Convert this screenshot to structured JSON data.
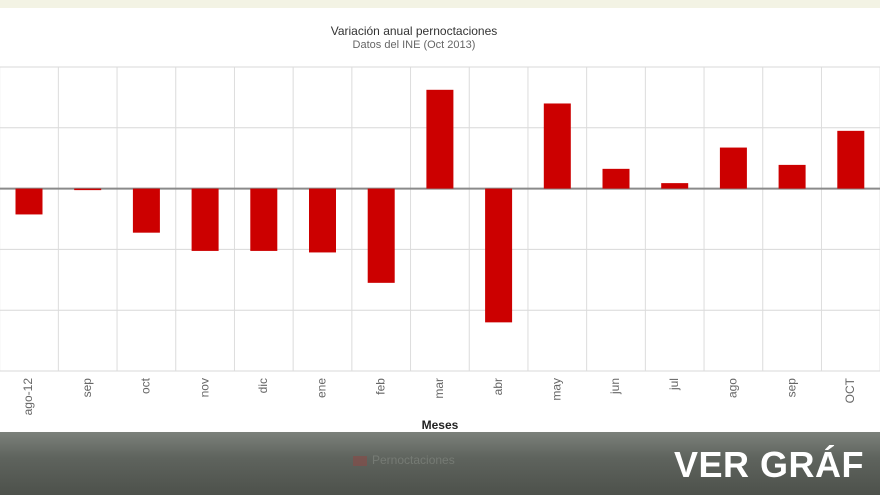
{
  "chart_data": {
    "type": "bar",
    "title": "Variación anual pernoctaciones",
    "subtitle": "Datos del INE (Oct 2013)",
    "xlabel": "Meses",
    "ylabel": "",
    "categories": [
      "ago-12",
      "sep",
      "oct",
      "nov",
      "dic",
      "ene",
      "feb",
      "mar",
      "abr",
      "may",
      "jun",
      "jul",
      "ago",
      "sep",
      "OCT"
    ],
    "values": [
      -0.85,
      -0.05,
      -1.45,
      -2.05,
      -2.05,
      -2.1,
      -3.1,
      3.25,
      -4.4,
      2.8,
      0.65,
      0.18,
      1.35,
      0.78,
      1.9
    ],
    "ylim": [
      -6,
      4
    ],
    "grid": true,
    "bar_color": "#cc0000",
    "series": [
      {
        "name": "Pernoctaciones",
        "values": [
          -0.85,
          -0.05,
          -1.45,
          -2.05,
          -2.05,
          -2.1,
          -3.1,
          3.25,
          -4.4,
          2.8,
          0.65,
          0.18,
          1.35,
          0.78,
          1.9
        ]
      }
    ],
    "legend": "bottom-center"
  },
  "footer": {
    "legend_label": "Pernoctaciones",
    "button_label": "VER GRÁF"
  }
}
